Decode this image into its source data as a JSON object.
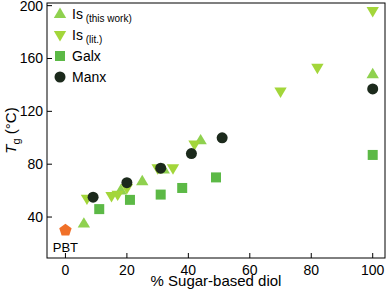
{
  "chart_data": {
    "type": "scatter",
    "x_label": "% Sugar-based diol",
    "y_label": "Tg (°C)",
    "xlim": [
      -6,
      104
    ],
    "ylim": [
      9,
      202
    ],
    "xticks": [
      0,
      20,
      40,
      60,
      80,
      100
    ],
    "yticks": [
      40,
      80,
      120,
      160,
      200
    ],
    "grid": false,
    "legend": "upper left",
    "series": [
      {
        "name": "Is (this work)",
        "color": "#8fd14f",
        "marker": "triangle-up",
        "x": [
          6,
          18,
          25,
          32,
          44,
          100
        ],
        "values": [
          35,
          60,
          67,
          76,
          98,
          148
        ]
      },
      {
        "name": "Is (lit.)",
        "color": "#a3d63a",
        "marker": "triangle-down",
        "x": [
          7,
          15,
          17,
          20,
          30,
          35,
          42,
          70,
          82,
          100
        ],
        "values": [
          54,
          56,
          57,
          62,
          77,
          77,
          95,
          135,
          153,
          196
        ]
      },
      {
        "name": "Galx",
        "color": "#5cb946",
        "marker": "square",
        "x": [
          11,
          21,
          31,
          38,
          49,
          100
        ],
        "values": [
          46,
          53,
          57,
          62,
          70,
          87
        ]
      },
      {
        "name": "Manx",
        "color": "#1c2a1c",
        "marker": "circle",
        "x": [
          9,
          20,
          31,
          41,
          51,
          100
        ],
        "values": [
          55,
          66,
          77,
          88,
          100,
          137
        ]
      },
      {
        "name": "PBT",
        "color": "#f07028",
        "marker": "pentagon",
        "x": [
          0
        ],
        "values": [
          30
        ]
      }
    ]
  }
}
